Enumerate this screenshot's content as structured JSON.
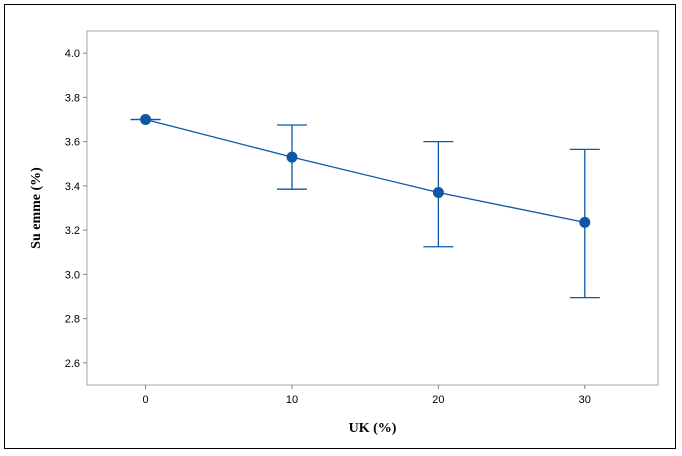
{
  "chart_data": {
    "type": "line",
    "title": "",
    "xlabel": "UK (%)",
    "ylabel": "Su emme  (%)",
    "x": [
      0,
      10,
      20,
      30
    ],
    "xticks": [
      "0",
      "10",
      "20",
      "30"
    ],
    "yticks": [
      "2.6",
      "2.8",
      "3.0",
      "3.2",
      "3.4",
      "3.6",
      "3.8",
      "4.0"
    ],
    "xlim": [
      -4,
      35
    ],
    "ylim": [
      2.5,
      4.1
    ],
    "grid": false,
    "series": [
      {
        "values": [
          3.7,
          3.53,
          3.37,
          3.235
        ],
        "error_lower": [
          3.7,
          3.385,
          3.125,
          2.895
        ],
        "error_upper": [
          3.7,
          3.675,
          3.6,
          3.565
        ]
      }
    ],
    "colors": {
      "series": "#0d57a6",
      "plot_border": "#a6a6a6"
    }
  }
}
